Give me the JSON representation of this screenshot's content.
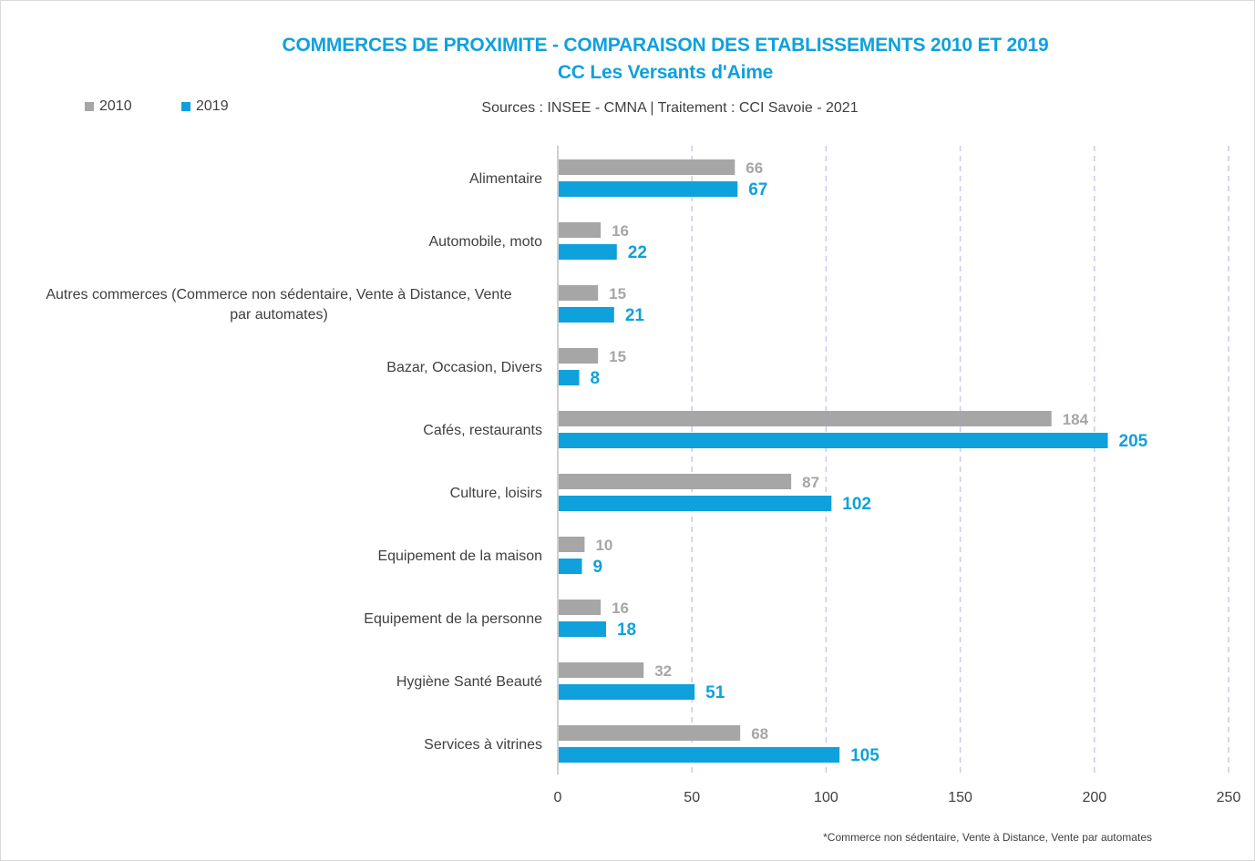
{
  "chart_data": {
    "type": "bar",
    "orientation": "horizontal",
    "title": "COMMERCES DE PROXIMITE - COMPARAISON DES ETABLISSEMENTS 2010 ET 2019",
    "subtitle": "CC Les Versants d'Aime",
    "source": "Sources : INSEE - CMNA  |  Traitement : CCI Savoie - 2021",
    "footnote": "*Commerce non sédentaire, Vente à Distance, Vente par automates",
    "categories": [
      "Alimentaire",
      "Automobile, moto",
      "Autres commerces (Commerce non sédentaire, Vente à Distance, Vente par automates)",
      "Bazar, Occasion, Divers",
      "Cafés, restaurants",
      "Culture, loisirs",
      "Equipement de la maison",
      "Equipement de la personne",
      "Hygiène Santé Beauté",
      "Services à vitrines"
    ],
    "series": [
      {
        "name": "2010",
        "color": "#a6a6a6",
        "values": [
          66,
          16,
          15,
          15,
          184,
          87,
          10,
          16,
          32,
          68
        ]
      },
      {
        "name": "2019",
        "color": "#0ea1dc",
        "values": [
          67,
          22,
          21,
          8,
          205,
          102,
          9,
          18,
          51,
          105
        ]
      }
    ],
    "xlim": [
      0,
      250
    ],
    "xticks": [
      "0",
      "50",
      "100",
      "150",
      "200",
      "250"
    ],
    "grid": "vertical dashed",
    "legend": "top-left"
  }
}
